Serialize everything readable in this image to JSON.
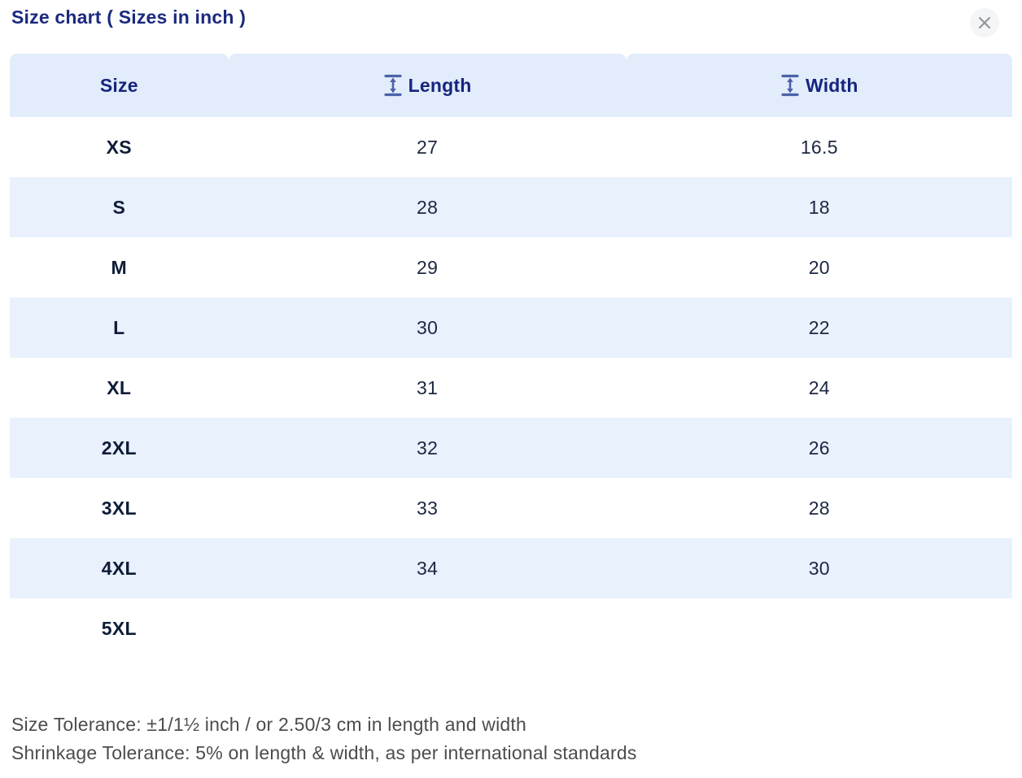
{
  "modal": {
    "title": "Size chart ( Sizes in inch )",
    "close_icon": "x-close-icon"
  },
  "table": {
    "columns": [
      {
        "key": "size",
        "label": "Size",
        "icon": null
      },
      {
        "key": "length",
        "label": "Length",
        "icon": "vertical-measure-icon"
      },
      {
        "key": "width",
        "label": "Width",
        "icon": "vertical-measure-icon"
      }
    ],
    "rows": [
      {
        "size": "XS",
        "length": "27",
        "width": "16.5"
      },
      {
        "size": "S",
        "length": "28",
        "width": "18"
      },
      {
        "size": "M",
        "length": "29",
        "width": "20"
      },
      {
        "size": "L",
        "length": "30",
        "width": "22"
      },
      {
        "size": "XL",
        "length": "31",
        "width": "24"
      },
      {
        "size": "2XL",
        "length": "32",
        "width": "26"
      },
      {
        "size": "3XL",
        "length": "33",
        "width": "28"
      },
      {
        "size": "4XL",
        "length": "34",
        "width": "30"
      },
      {
        "size": "5XL",
        "length": "",
        "width": ""
      }
    ]
  },
  "notes": {
    "size_tolerance": "Size Tolerance: ±1/1½ inch / or 2.50/3 cm in length and width",
    "shrinkage_tolerance": "Shrinkage Tolerance: 5% on length & width, as per international standards"
  },
  "colors": {
    "title_navy": "#1b2a7e",
    "header_bg": "#e2ecfa",
    "stripe_bg": "#e8f1fc",
    "header_text": "#15257e",
    "icon_blue": "#4c61aa",
    "cell_text": "#1c2742",
    "note_text": "#4c4c4c",
    "close_bg": "#f4f5f6",
    "close_glyph": "#8f9296"
  }
}
